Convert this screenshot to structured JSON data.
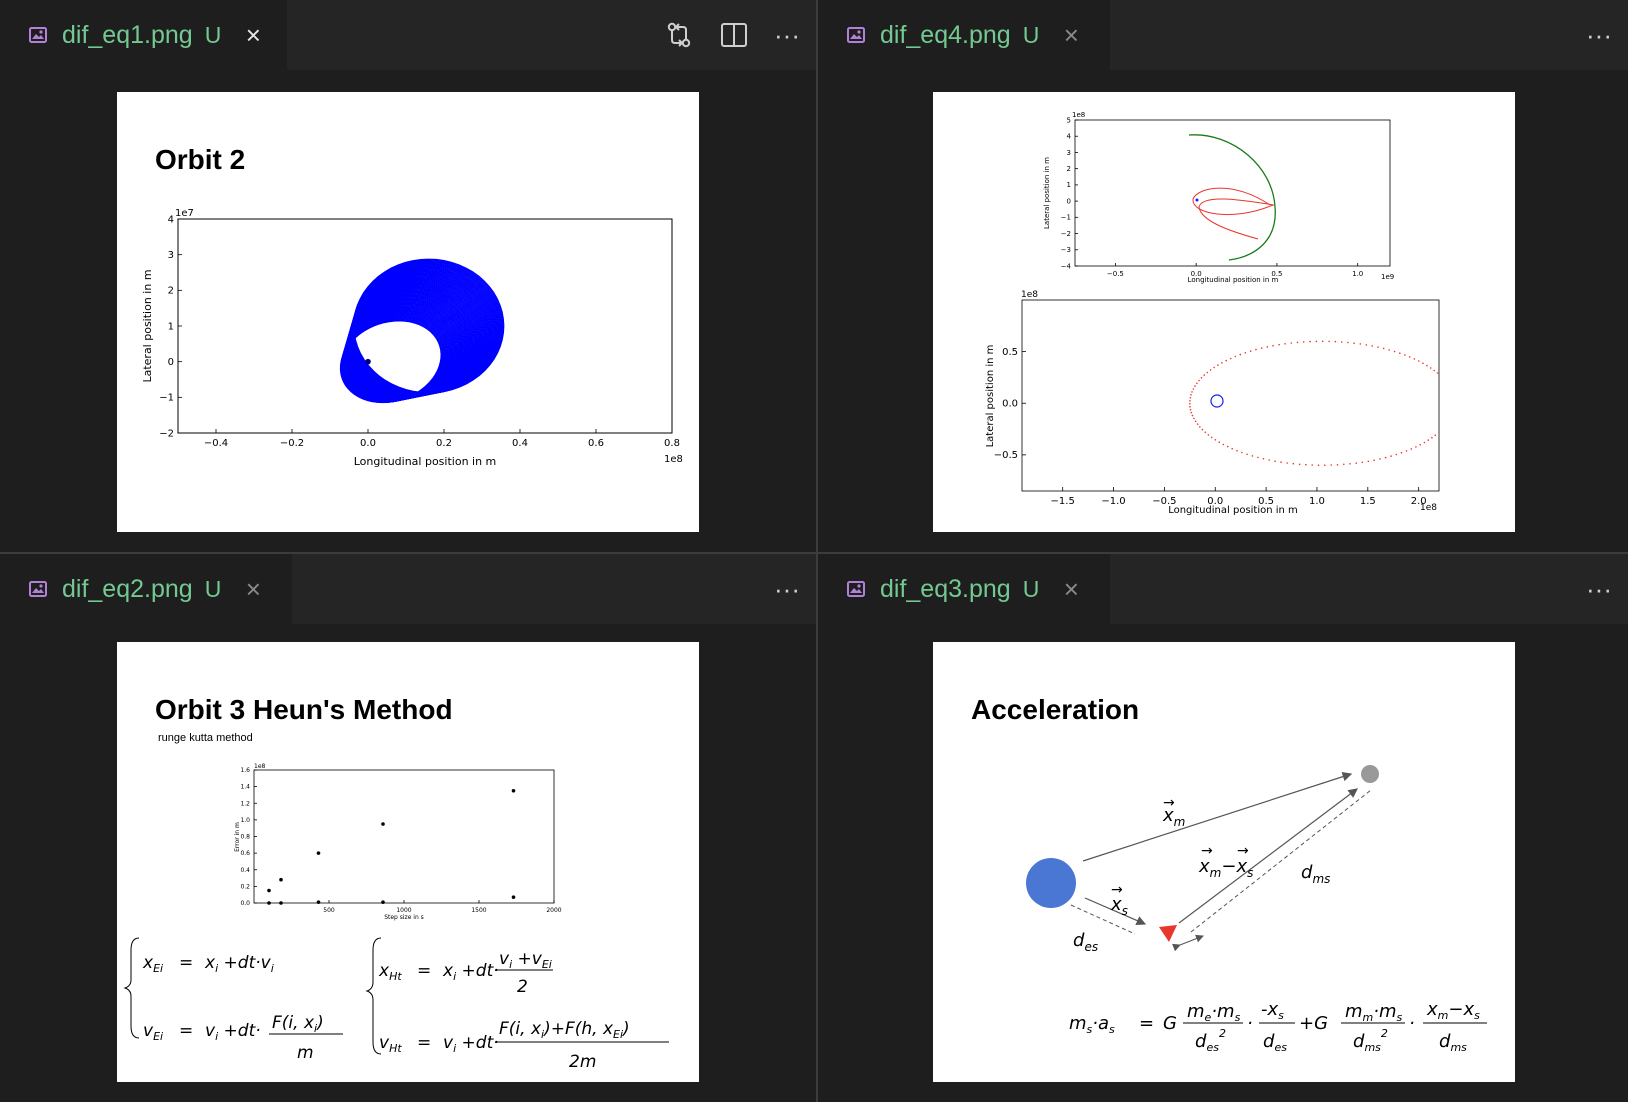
{
  "tabs": {
    "tl": {
      "filename": "dif_eq1.png",
      "badge": "U",
      "close": "×",
      "icon": "image-file-icon"
    },
    "tr": {
      "filename": "dif_eq4.png",
      "badge": "U",
      "close": "×",
      "icon": "image-file-icon"
    },
    "bl": {
      "filename": "dif_eq2.png",
      "badge": "U",
      "close": "×",
      "icon": "image-file-icon"
    },
    "br": {
      "filename": "dif_eq3.png",
      "badge": "U",
      "close": "×",
      "icon": "image-file-icon"
    }
  },
  "toolbar": {
    "more": "···",
    "compare_icon": "open-changes-icon",
    "split_icon": "split-editor-icon",
    "more_icon": "more-actions-icon"
  },
  "orbit2": {
    "title": "Orbit 2",
    "chart_data": {
      "type": "line",
      "xlabel": "Longitudinal position in m",
      "ylabel": "Lateral position in m",
      "xlim": [
        -0.5,
        0.8
      ],
      "ylim": [
        -2,
        4
      ],
      "x_multiplier": "1e8",
      "y_multiplier": "1e7",
      "x_ticks": [
        "−0.4",
        "−0.2",
        "0.0",
        "0.2",
        "0.4",
        "0.6",
        "0.8"
      ],
      "y_ticks": [
        "−2",
        "−1",
        "0",
        "1",
        "2",
        "3",
        "4"
      ],
      "series": [
        {
          "values": "spiralling ellipse orbits",
          "color": "#0000ff"
        }
      ],
      "body_point": [
        0.0,
        0.0
      ]
    }
  },
  "orbit4": {
    "top_chart": {
      "type": "line",
      "xlabel": "Longitudinal position in m",
      "ylabel": "Lateral position in m",
      "xlim": [
        -0.75,
        1.2
      ],
      "ylim": [
        -4,
        5
      ],
      "x_multiplier": "1e9",
      "y_multiplier": "1e8",
      "x_ticks": [
        "−0.5",
        "0.0",
        "0.5",
        "1.0"
      ],
      "y_ticks": [
        "−4",
        "−3",
        "−2",
        "−1",
        "0",
        "1",
        "2",
        "3",
        "4",
        "5"
      ],
      "series_colors": [
        "#1a7a1a",
        "#e8372c"
      ]
    },
    "bottom_chart": {
      "type": "scatter",
      "xlabel": "Longitudinal position in m",
      "ylabel": "Lateral position in m",
      "xlim": [
        -1.9,
        2.2
      ],
      "ylim": [
        -0.85,
        1.0
      ],
      "x_multiplier": "1e8",
      "y_multiplier": "1e8",
      "x_ticks": [
        "−1.5",
        "−1.0",
        "−0.5",
        "0.0",
        "0.5",
        "1.0",
        "1.5",
        "2.0"
      ],
      "y_ticks": [
        "−0.5",
        "0.0",
        "0.5"
      ],
      "series_colors": [
        "#e8372c",
        "#1a1aff"
      ]
    }
  },
  "orbit3": {
    "title": "Orbit 3 Heun's Method",
    "subtitle": "runge kutta method",
    "chart_data": {
      "type": "scatter",
      "xlabel": "Step size in s",
      "ylabel": "Error in m",
      "y_multiplier": "1e8",
      "xlim": [
        0,
        2000
      ],
      "ylim": [
        0,
        1.6
      ],
      "x_ticks": [
        "500",
        "1000",
        "1500",
        "2000"
      ],
      "y_ticks": [
        "0.0",
        "0.2",
        "0.4",
        "0.6",
        "0.8",
        "1.0",
        "1.2",
        "1.4",
        "1.6"
      ],
      "series": [
        {
          "x": [
            100,
            180,
            430,
            860,
            1730
          ],
          "y": [
            0.15,
            0.28,
            0.6,
            0.95,
            1.35
          ]
        },
        {
          "x": [
            100,
            180,
            430,
            860,
            1730
          ],
          "y": [
            0.0,
            0.0,
            0.01,
            0.01,
            0.07
          ]
        }
      ]
    }
  },
  "accel": {
    "title": "Acceleration",
    "labels": {
      "xm": "x",
      "xm_sub": "m",
      "xms": "x",
      "xms_sub1": "m",
      "minus": "−",
      "xms2": "x",
      "xms_sub2": "s",
      "xs": "x",
      "xs_sub": "s",
      "dms": "d",
      "dms_sub": "ms",
      "des": "d",
      "des_sub": "es"
    },
    "colors": {
      "earth": "#4a76d4",
      "sun": "#e8372c",
      "moon": "#999999"
    }
  }
}
